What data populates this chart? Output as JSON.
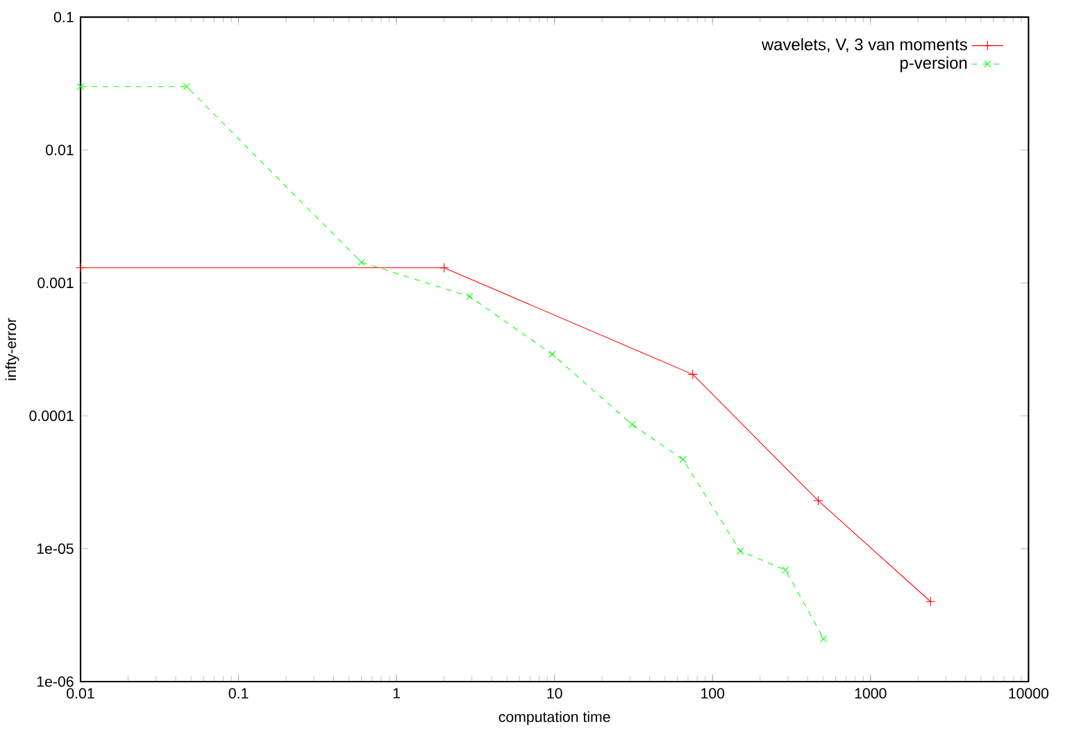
{
  "chart_data": {
    "type": "line",
    "xlabel": "computation time",
    "ylabel": "infty-error",
    "log": "xy",
    "legend": "top right",
    "grid": false,
    "xlim": [
      0.01,
      10000
    ],
    "ylim": [
      1e-06,
      0.1
    ],
    "xticks": [
      0.01,
      0.1,
      1,
      10,
      100,
      1000,
      10000
    ],
    "yticks": [
      0.1,
      0.01,
      0.001,
      0.0001,
      {
        "value": 1e-05,
        "label": "1e-05"
      },
      {
        "value": 1e-06,
        "label": "1e-06"
      }
    ],
    "series": [
      {
        "name": "wavelets, V, 3 van moments",
        "color": "#ff0000",
        "marker": "plus",
        "line_style": "solid",
        "x": [
          0.01,
          2,
          75,
          467,
          2400
        ],
        "values": [
          0.0013,
          0.0013,
          0.000205,
          2.3e-05,
          4e-06
        ]
      },
      {
        "name": "p-version",
        "color": "#00ff00",
        "marker": "cross",
        "line_style": "dashed",
        "x": [
          0.01,
          0.047,
          0.6,
          2.9,
          9.7,
          31,
          65,
          150,
          290,
          505
        ],
        "values": [
          0.03,
          0.03,
          0.00143,
          0.00079,
          0.00029,
          8.6e-05,
          4.7e-05,
          9.6e-06,
          6.9e-06,
          2.1e-06
        ]
      }
    ]
  }
}
